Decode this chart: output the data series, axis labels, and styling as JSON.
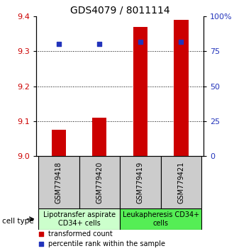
{
  "title": "GDS4079 / 8011114",
  "samples": [
    "GSM779418",
    "GSM779420",
    "GSM779419",
    "GSM779421"
  ],
  "bar_values": [
    9.075,
    9.11,
    9.37,
    9.39
  ],
  "percentile_values": [
    80,
    80,
    82,
    82
  ],
  "ylim_left": [
    9.0,
    9.4
  ],
  "ylim_right": [
    0,
    100
  ],
  "yticks_left": [
    9.0,
    9.1,
    9.2,
    9.3,
    9.4
  ],
  "yticks_right": [
    0,
    25,
    50,
    75,
    100
  ],
  "ytick_labels_right": [
    "0",
    "25",
    "50",
    "75",
    "100%"
  ],
  "bar_color": "#cc0000",
  "dot_color": "#2233bb",
  "bar_bottom": 9.0,
  "grid_lines": [
    9.1,
    9.2,
    9.3
  ],
  "cell_types": [
    {
      "label": "Lipotransfer aspirate\nCD34+ cells",
      "samples": [
        0,
        1
      ],
      "color": "#ccffcc"
    },
    {
      "label": "Leukapheresis CD34+\ncells",
      "samples": [
        2,
        3
      ],
      "color": "#55ee55"
    }
  ],
  "cell_type_label": "cell type",
  "legend_bar_label": "transformed count",
  "legend_dot_label": "percentile rank within the sample",
  "title_fontsize": 10,
  "tick_fontsize": 8,
  "sample_fontsize": 7,
  "cell_type_fontsize": 7,
  "legend_fontsize": 7,
  "background_color": "#ffffff",
  "label_area_bg": "#cccccc"
}
